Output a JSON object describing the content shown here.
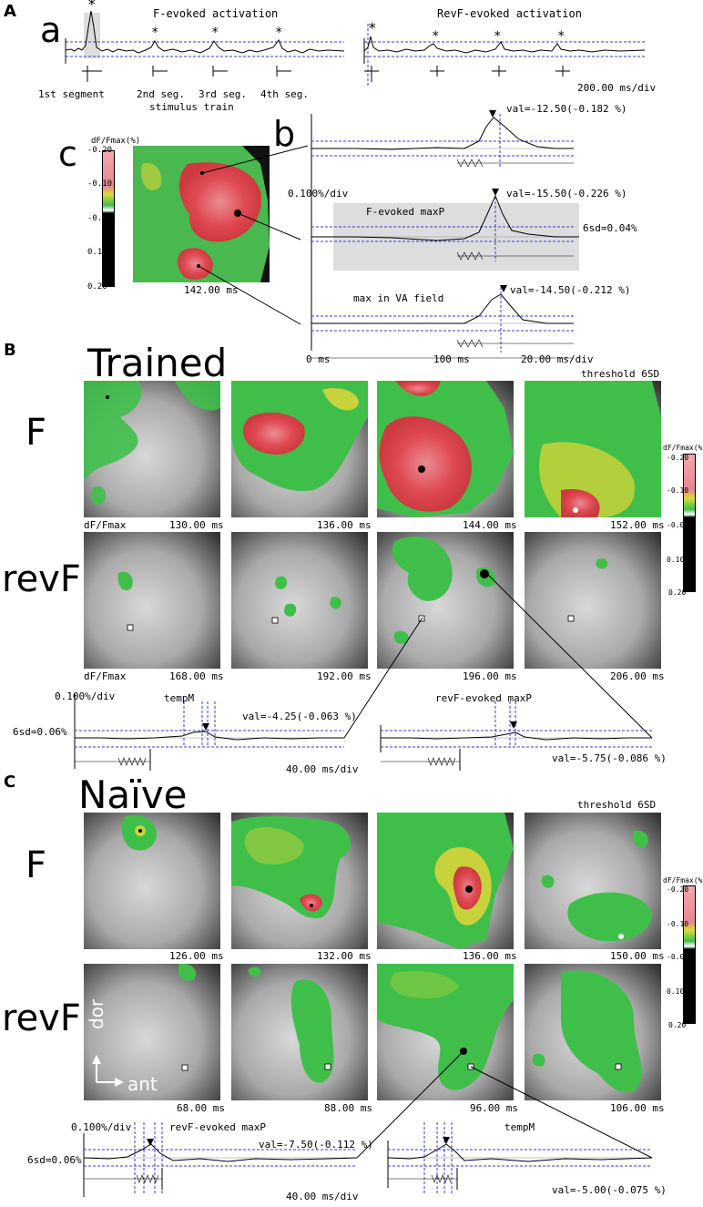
{
  "panelA": {
    "letter": "A",
    "sub_a": "a",
    "sub_b": "b",
    "sub_c": "c",
    "title_f": "F-evoked activation",
    "title_revf": "RevF-evoked activation",
    "peak_marker": "*",
    "segments": [
      "1st segment",
      "2nd seg.",
      "3rd seg.",
      "4th seg."
    ],
    "stimulus_train": "stimulus train",
    "timescale_a": "200.00 ms/div",
    "colorbar_label": "dF/Fmax(%)",
    "colorbar_ticks": [
      "-0.20",
      "-0.10",
      "-0.00",
      "0.10",
      "0.20"
    ],
    "map_time": "142.00 ms",
    "vscale": "0.100%/div",
    "trace1_val": "val=-12.50(-0.182 %)",
    "trace2_label": "F-evoked maxP",
    "trace2_val": "val=-15.50(-0.226 %)",
    "trace2_sd": "6sd=0.04%",
    "trace3_label": "max in VA field",
    "trace3_val": "val=-14.50(-0.212 %)",
    "axis_0": "0 ms",
    "axis_100": "100 ms",
    "timescale_b": "20.00 ms/div"
  },
  "panelB": {
    "letter": "B",
    "title": "Trained",
    "threshold": "threshold 6SD",
    "row_f": "F",
    "row_revf": "revF",
    "dffmax": "dF/Fmax",
    "f_times": [
      "130.00 ms",
      "136.00 ms",
      "144.00 ms",
      "152.00 ms"
    ],
    "revf_times": [
      "168.00 ms",
      "192.00 ms",
      "196.00 ms",
      "206.00 ms"
    ],
    "colorbar_label": "dF/Fmax(%)",
    "colorbar_ticks": [
      "-0.20",
      "-0.10",
      "-0.00",
      "0.10",
      "0.20"
    ],
    "vscale": "0.100%/div",
    "sd": "6sd=0.06%",
    "trace1_label": "tempM",
    "trace1_val": "val=-4.25(-0.063 %)",
    "trace2_label": "revF-evoked maxP",
    "trace2_val": "val=-5.75(-0.086 %)",
    "timescale": "40.00 ms/div"
  },
  "panelC": {
    "letter": "C",
    "title": "Naïve",
    "threshold": "threshold 6SD",
    "row_f": "F",
    "row_revf": "revF",
    "f_times": [
      "126.00 ms",
      "132.00 ms",
      "136.00 ms",
      "150.00 ms"
    ],
    "revf_times": [
      "68.00 ms",
      "88.00 ms",
      "96.00 ms",
      "106.00 ms"
    ],
    "orient_dor": "dor",
    "orient_ant": "ant",
    "colorbar_label": "dF/Fmax(%)",
    "colorbar_ticks": [
      "-0.20",
      "-0.10",
      "-0.00",
      "0.10",
      "0.20"
    ],
    "vscale": "0.100%/div",
    "sd": "6sd=0.06%",
    "trace1_label": "revF-evoked maxP",
    "trace1_val": "val=-7.50(-0.112 %)",
    "trace2_label": "tempM",
    "trace2_val": "val=-5.00(-0.075 %)",
    "timescale": "40.00 ms/div"
  },
  "colors": {
    "red": "#e0494d",
    "yellow": "#c8d23a",
    "green": "#3fbf4a",
    "dashed": "#3a3ad0"
  }
}
